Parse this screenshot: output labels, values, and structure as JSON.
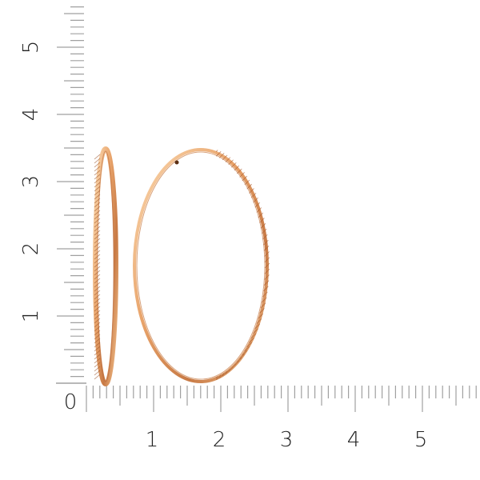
{
  "ruler": {
    "unit_labels_vertical": [
      "1",
      "2",
      "3",
      "4",
      "5"
    ],
    "unit_labels_horizontal": [
      "1",
      "2",
      "3",
      "4",
      "5"
    ],
    "origin_label": "0",
    "tick_color": "#a0a0a0",
    "label_color": "#222222"
  },
  "product": {
    "subject": "hoop-earrings",
    "metal_color": "#e8a36a",
    "highlight_color": "#fbd9b0",
    "shadow_color": "#b8683a"
  }
}
